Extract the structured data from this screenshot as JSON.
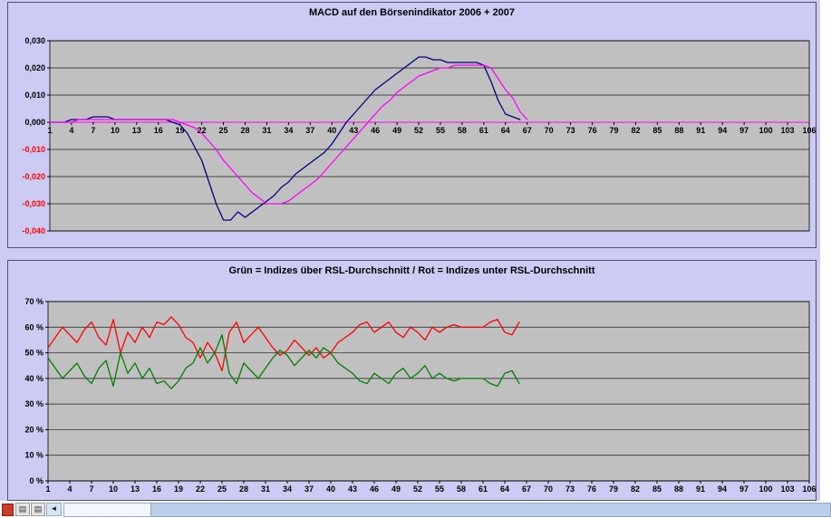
{
  "page_bg": "#cbcbf3",
  "chart_data": [
    {
      "type": "line",
      "title": "MACD auf den Börsenindikator 2006 + 2007",
      "ylim": [
        -0.04,
        0.03
      ],
      "x_start": 1,
      "x_end": 106,
      "plot_bg": "#c0c0c0",
      "grid": true,
      "legend": "none",
      "axis": {
        "value": 0,
        "color": "#ff00ff"
      },
      "yticks": [
        {
          "label": "0,030",
          "value": 0.03,
          "color": "#000000"
        },
        {
          "label": "0,020",
          "value": 0.02,
          "color": "#000000"
        },
        {
          "label": "0,010",
          "value": 0.01,
          "color": "#000000"
        },
        {
          "label": "0,000",
          "value": 0.0,
          "color": "#000000"
        },
        {
          "label": "-0,010",
          "value": -0.01,
          "color": "#ff0000"
        },
        {
          "label": "-0,020",
          "value": -0.02,
          "color": "#ff0000"
        },
        {
          "label": "-0,030",
          "value": -0.03,
          "color": "#ff0000"
        },
        {
          "label": "-0,040",
          "value": -0.04,
          "color": "#ff0000"
        }
      ],
      "xticks": [
        1,
        4,
        7,
        10,
        13,
        16,
        19,
        22,
        25,
        28,
        31,
        34,
        37,
        40,
        43,
        46,
        49,
        52,
        55,
        58,
        61,
        64,
        67,
        70,
        73,
        76,
        79,
        82,
        85,
        88,
        91,
        94,
        97,
        100,
        103,
        106
      ],
      "series": [
        {
          "name": "macd-blue-line",
          "color": "#000080",
          "x_start": 1,
          "values": [
            0.0,
            0.0,
            0.0,
            0.001,
            0.001,
            0.001,
            0.002,
            0.002,
            0.002,
            0.001,
            0.001,
            0.001,
            0.001,
            0.001,
            0.001,
            0.001,
            0.001,
            0.0,
            -0.001,
            -0.004,
            -0.009,
            -0.014,
            -0.022,
            -0.03,
            -0.036,
            -0.036,
            -0.033,
            -0.035,
            -0.033,
            -0.031,
            -0.029,
            -0.027,
            -0.024,
            -0.022,
            -0.019,
            -0.017,
            -0.015,
            -0.013,
            -0.011,
            -0.008,
            -0.004,
            0.0,
            0.003,
            0.006,
            0.009,
            0.012,
            0.014,
            0.016,
            0.018,
            0.02,
            0.022,
            0.024,
            0.024,
            0.023,
            0.023,
            0.022,
            0.022,
            0.022,
            0.022,
            0.022,
            0.021,
            0.015,
            0.008,
            0.003,
            0.002,
            0.001
          ]
        },
        {
          "name": "macd-magenta-line",
          "color": "#ff00ff",
          "x_start": 1,
          "values": [
            0.0,
            0.0,
            0.0,
            0.0,
            0.001,
            0.001,
            0.001,
            0.001,
            0.001,
            0.001,
            0.001,
            0.001,
            0.001,
            0.001,
            0.001,
            0.001,
            0.001,
            0.001,
            0.0,
            -0.001,
            -0.002,
            -0.004,
            -0.007,
            -0.01,
            -0.014,
            -0.017,
            -0.02,
            -0.023,
            -0.026,
            -0.028,
            -0.03,
            -0.03,
            -0.03,
            -0.029,
            -0.027,
            -0.025,
            -0.023,
            -0.021,
            -0.018,
            -0.015,
            -0.012,
            -0.009,
            -0.006,
            -0.003,
            0.0,
            0.003,
            0.006,
            0.008,
            0.011,
            0.013,
            0.015,
            0.017,
            0.018,
            0.019,
            0.02,
            0.02,
            0.021,
            0.021,
            0.021,
            0.021,
            0.021,
            0.02,
            0.016,
            0.012,
            0.009,
            0.004,
            0.001
          ]
        }
      ]
    },
    {
      "type": "line",
      "title": "Grün = Indizes über RSL-Durchschnitt / Rot = Indizes unter RSL-Durchschnitt",
      "ylim": [
        0,
        70
      ],
      "x_start": 1,
      "x_end": 106,
      "plot_bg": "#c0c0c0",
      "grid": true,
      "legend": "none",
      "axis": {
        "value": 0,
        "color": "#000000"
      },
      "yticks": [
        {
          "label": "70 %",
          "value": 70,
          "color": "#000000"
        },
        {
          "label": "60 %",
          "value": 60,
          "color": "#000000"
        },
        {
          "label": "50 %",
          "value": 50,
          "color": "#000000"
        },
        {
          "label": "40 %",
          "value": 40,
          "color": "#000000"
        },
        {
          "label": "30 %",
          "value": 30,
          "color": "#000000"
        },
        {
          "label": "20 %",
          "value": 20,
          "color": "#000000"
        },
        {
          "label": "10 %",
          "value": 10,
          "color": "#000000"
        },
        {
          "label": "0 %",
          "value": 0,
          "color": "#000000"
        }
      ],
      "xticks": [
        1,
        4,
        7,
        10,
        13,
        16,
        19,
        22,
        25,
        28,
        31,
        34,
        37,
        40,
        43,
        46,
        49,
        52,
        55,
        58,
        61,
        64,
        67,
        70,
        73,
        76,
        79,
        82,
        85,
        88,
        91,
        94,
        97,
        100,
        103,
        106
      ],
      "series": [
        {
          "name": "indizes-unter-rsl-durchschnitt-rot",
          "color": "#ff0000",
          "x_start": 1,
          "values": [
            52,
            56,
            60,
            57,
            54,
            59,
            62,
            56,
            53,
            63,
            50,
            58,
            54,
            60,
            56,
            62,
            61,
            64,
            61,
            56,
            54,
            48,
            54,
            50,
            43,
            58,
            62,
            54,
            57,
            60,
            56,
            52,
            49,
            51,
            55,
            52,
            49,
            52,
            48,
            50,
            54,
            56,
            58,
            61,
            62,
            58,
            60,
            62,
            58,
            56,
            60,
            58,
            55,
            60,
            58,
            60,
            61,
            60,
            60,
            60,
            60,
            62,
            63,
            58,
            57,
            62
          ]
        },
        {
          "name": "indizes-ueber-rsl-durchschnitt-gruen",
          "color": "#008000",
          "x_start": 1,
          "values": [
            48,
            44,
            40,
            43,
            46,
            41,
            38,
            44,
            47,
            37,
            50,
            42,
            46,
            40,
            44,
            38,
            39,
            36,
            39,
            44,
            46,
            52,
            46,
            50,
            57,
            42,
            38,
            46,
            43,
            40,
            44,
            48,
            51,
            49,
            45,
            48,
            51,
            48,
            52,
            50,
            46,
            44,
            42,
            39,
            38,
            42,
            40,
            38,
            42,
            44,
            40,
            42,
            45,
            40,
            42,
            40,
            39,
            40,
            40,
            40,
            40,
            38,
            37,
            42,
            43,
            38
          ]
        }
      ]
    }
  ],
  "bottom_bar": {
    "sheet_glyph": "▤",
    "sheet_glyph2": "▤",
    "arrow_left": "◄"
  }
}
